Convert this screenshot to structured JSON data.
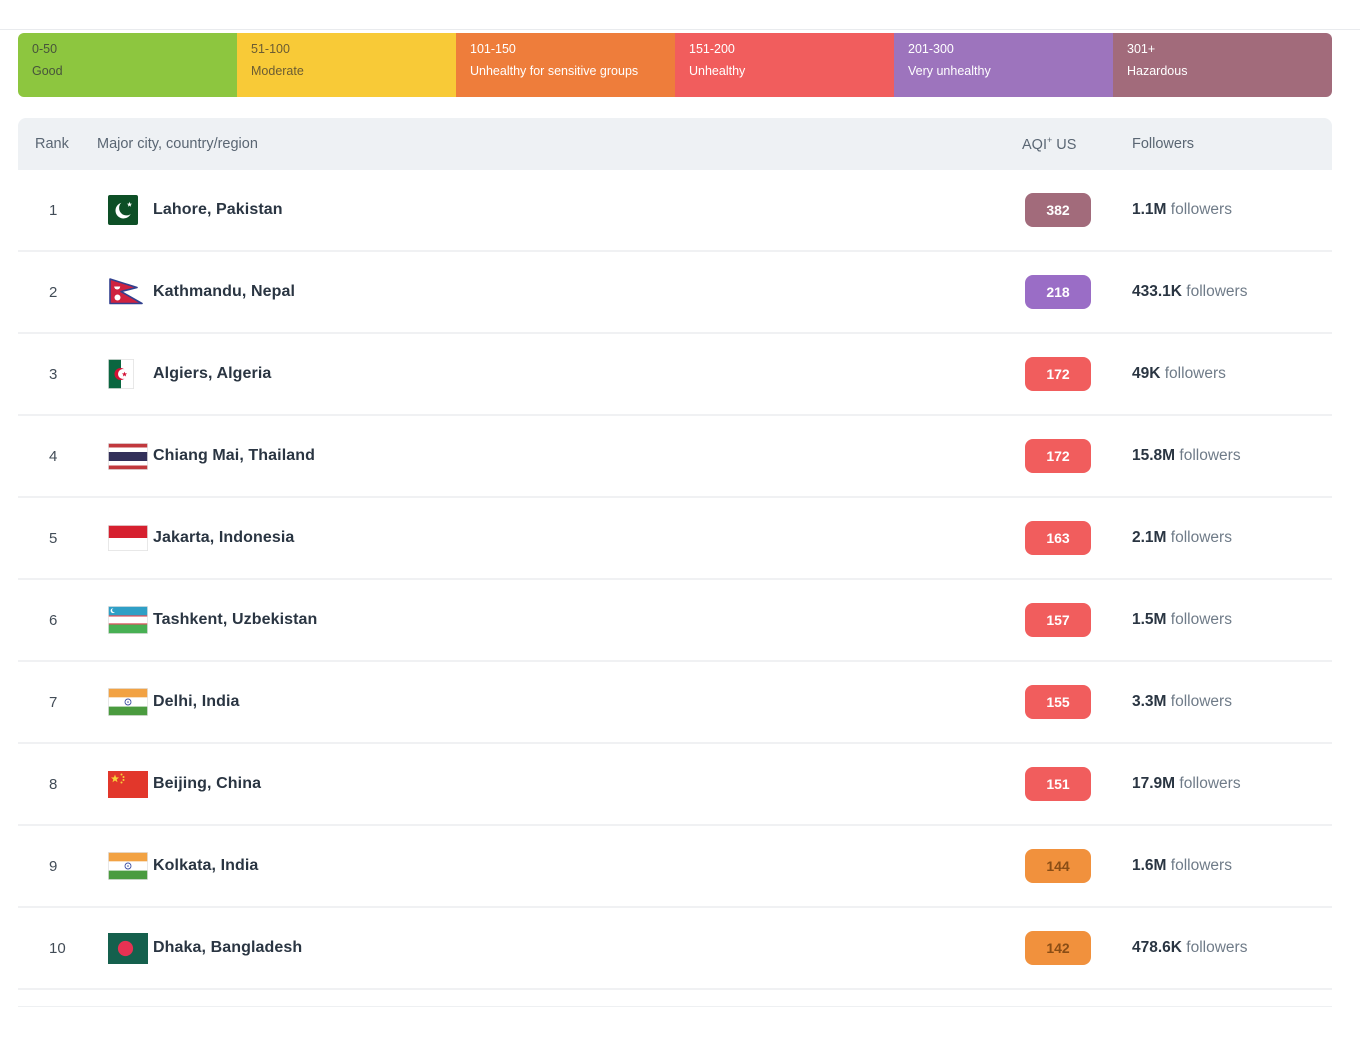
{
  "legend": {
    "segments": [
      {
        "range": "0-50",
        "label": "Good",
        "color": "#8dc63f",
        "text_color": "#47543b"
      },
      {
        "range": "51-100",
        "label": "Moderate",
        "color": "#f8ca37",
        "text_color": "#6b5c33"
      },
      {
        "range": "101-150",
        "label": "Unhealthy for sensitive groups",
        "color": "#ee7d3b",
        "text_color": "#ffffff"
      },
      {
        "range": "151-200",
        "label": "Unhealthy",
        "color": "#f15d5d",
        "text_color": "#ffffff"
      },
      {
        "range": "201-300",
        "label": "Very unhealthy",
        "color": "#9d74bd",
        "text_color": "#ffffff"
      },
      {
        "range": "301+",
        "label": "Hazardous",
        "color": "#a26b7b",
        "text_color": "#ffffff"
      }
    ]
  },
  "table": {
    "headers": {
      "rank": "Rank",
      "city": "Major city, country/region",
      "aqi": "AQI",
      "aqi_sup": "+",
      "aqi_suffix": "US",
      "followers": "Followers"
    },
    "aqi_level_colors": {
      "unhealthy_sensitive": {
        "bg": "#f1913d",
        "text": "#8a4d15"
      },
      "unhealthy": {
        "bg": "#f15d5d",
        "text": "#ffffff"
      },
      "very_unhealthy": {
        "bg": "#9a6dc6",
        "text": "#ffffff"
      },
      "hazardous": {
        "bg": "#a26b7b",
        "text": "#ffffff"
      }
    },
    "rows": [
      {
        "rank": "1",
        "city": "Lahore, Pakistan",
        "flag": "pakistan-flag",
        "aqi": "382",
        "aqi_level": "hazardous",
        "followers_count": "1.1M",
        "followers_suffix": "followers"
      },
      {
        "rank": "2",
        "city": "Kathmandu, Nepal",
        "flag": "nepal-flag",
        "aqi": "218",
        "aqi_level": "very_unhealthy",
        "followers_count": "433.1K",
        "followers_suffix": "followers"
      },
      {
        "rank": "3",
        "city": "Algiers, Algeria",
        "flag": "algeria-flag",
        "aqi": "172",
        "aqi_level": "unhealthy",
        "followers_count": "49K",
        "followers_suffix": "followers"
      },
      {
        "rank": "4",
        "city": "Chiang Mai, Thailand",
        "flag": "thailand-flag",
        "aqi": "172",
        "aqi_level": "unhealthy",
        "followers_count": "15.8M",
        "followers_suffix": "followers"
      },
      {
        "rank": "5",
        "city": "Jakarta, Indonesia",
        "flag": "indonesia-flag",
        "aqi": "163",
        "aqi_level": "unhealthy",
        "followers_count": "2.1M",
        "followers_suffix": "followers"
      },
      {
        "rank": "6",
        "city": "Tashkent, Uzbekistan",
        "flag": "uzbekistan-flag",
        "aqi": "157",
        "aqi_level": "unhealthy",
        "followers_count": "1.5M",
        "followers_suffix": "followers"
      },
      {
        "rank": "7",
        "city": "Delhi, India",
        "flag": "india-flag",
        "aqi": "155",
        "aqi_level": "unhealthy",
        "followers_count": "3.3M",
        "followers_suffix": "followers"
      },
      {
        "rank": "8",
        "city": "Beijing, China",
        "flag": "china-flag",
        "aqi": "151",
        "aqi_level": "unhealthy",
        "followers_count": "17.9M",
        "followers_suffix": "followers"
      },
      {
        "rank": "9",
        "city": "Kolkata, India",
        "flag": "india-flag",
        "aqi": "144",
        "aqi_level": "unhealthy_sensitive",
        "followers_count": "1.6M",
        "followers_suffix": "followers"
      },
      {
        "rank": "10",
        "city": "Dhaka, Bangladesh",
        "flag": "bangladesh-flag",
        "aqi": "142",
        "aqi_level": "unhealthy_sensitive",
        "followers_count": "478.6K",
        "followers_suffix": "followers"
      }
    ]
  }
}
